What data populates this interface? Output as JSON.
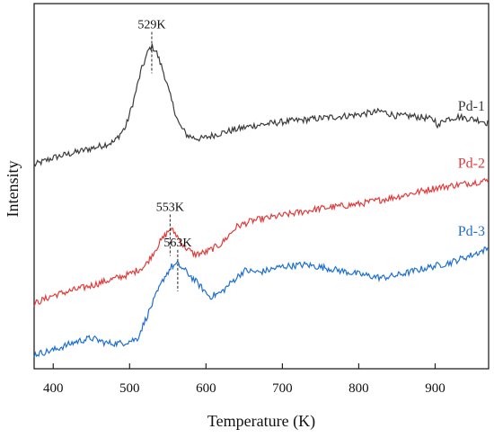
{
  "chart_data": {
    "type": "line",
    "xlabel": "Temperature (K)",
    "ylabel": "Intensity",
    "xlim": [
      375,
      970
    ],
    "ylim": [
      0,
      1
    ],
    "xticks": [
      400,
      500,
      600,
      700,
      800,
      900
    ],
    "yticks_shown": false,
    "grid": false,
    "legend": "inline labels at right end of each curve",
    "series": [
      {
        "name": "Pd-1",
        "color": "#3b3b3b",
        "x": [
          375,
          400,
          430,
          460,
          480,
          495,
          505,
          515,
          525,
          529,
          535,
          545,
          555,
          565,
          575,
          585,
          595,
          610,
          630,
          660,
          700,
          750,
          800,
          830,
          850,
          870,
          890,
          900,
          905,
          910,
          930,
          960,
          970
        ],
        "y": [
          0.558,
          0.578,
          0.593,
          0.609,
          0.622,
          0.663,
          0.733,
          0.816,
          0.873,
          0.883,
          0.868,
          0.809,
          0.733,
          0.668,
          0.64,
          0.632,
          0.63,
          0.64,
          0.651,
          0.665,
          0.676,
          0.686,
          0.696,
          0.705,
          0.692,
          0.692,
          0.686,
          0.68,
          0.662,
          0.682,
          0.69,
          0.68,
          0.672
        ]
      },
      {
        "name": "Pd-2",
        "color": "#e23b3b",
        "x": [
          375,
          400,
          450,
          500,
          520,
          540,
          553,
          560,
          570,
          585,
          600,
          620,
          640,
          660,
          700,
          750,
          800,
          850,
          900,
          950,
          970
        ],
        "y": [
          0.178,
          0.201,
          0.228,
          0.259,
          0.281,
          0.347,
          0.383,
          0.371,
          0.337,
          0.313,
          0.319,
          0.342,
          0.389,
          0.405,
          0.42,
          0.439,
          0.451,
          0.471,
          0.495,
          0.51,
          0.516
        ]
      },
      {
        "name": "Pd-3",
        "color": "#1e6fd0",
        "x": [
          375,
          400,
          430,
          450,
          470,
          490,
          510,
          530,
          545,
          555,
          563,
          575,
          590,
          605,
          620,
          635,
          650,
          670,
          700,
          730,
          760,
          800,
          830,
          850,
          880,
          920,
          950,
          970
        ],
        "y": [
          0.039,
          0.051,
          0.074,
          0.084,
          0.07,
          0.07,
          0.082,
          0.179,
          0.249,
          0.28,
          0.286,
          0.264,
          0.232,
          0.197,
          0.209,
          0.24,
          0.269,
          0.264,
          0.28,
          0.285,
          0.275,
          0.259,
          0.249,
          0.256,
          0.272,
          0.291,
          0.313,
          0.33
        ]
      }
    ],
    "annotations": [
      {
        "text": "529K",
        "x": 529,
        "series": 0
      },
      {
        "text": "553K",
        "x": 553,
        "series": 1
      },
      {
        "text": "563K",
        "x": 563,
        "series": 2
      }
    ]
  }
}
